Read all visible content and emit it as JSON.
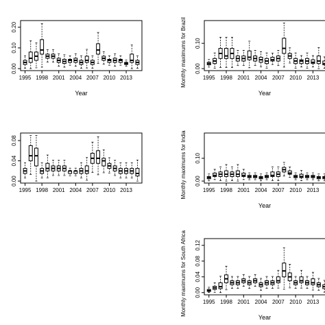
{
  "chart_data": [
    {
      "type": "boxplot",
      "xlabel": "Year",
      "ylabel": "",
      "x_ticks": [
        "1995",
        "1998",
        "2001",
        "2004",
        "2007",
        "2010",
        "2013"
      ],
      "y_ticks": [
        "0.00",
        "0.10",
        "0.20"
      ],
      "ylim": [
        0,
        0.22
      ],
      "series": [
        {
          "name": "",
          "boxes": [
            {
              "year": 1995,
              "q1": 0.02,
              "median": 0.03,
              "q3": 0.04
            },
            {
              "year": 1996,
              "q1": 0.03,
              "median": 0.05,
              "q3": 0.08
            },
            {
              "year": 1997,
              "q1": 0.04,
              "median": 0.06,
              "q3": 0.08
            },
            {
              "year": 1998,
              "q1": 0.07,
              "median": 0.09,
              "q3": 0.14
            },
            {
              "year": 1999,
              "q1": 0.05,
              "median": 0.06,
              "q3": 0.07
            },
            {
              "year": 2000,
              "q1": 0.05,
              "median": 0.06,
              "q3": 0.07
            },
            {
              "year": 2001,
              "q1": 0.03,
              "median": 0.04,
              "q3": 0.05
            },
            {
              "year": 2002,
              "q1": 0.025,
              "median": 0.035,
              "q3": 0.045
            },
            {
              "year": 2003,
              "q1": 0.03,
              "median": 0.04,
              "q3": 0.045
            },
            {
              "year": 2004,
              "q1": 0.03,
              "median": 0.04,
              "q3": 0.05
            },
            {
              "year": 2005,
              "q1": 0.02,
              "median": 0.03,
              "q3": 0.04
            },
            {
              "year": 2006,
              "q1": 0.03,
              "median": 0.04,
              "q3": 0.06
            },
            {
              "year": 2007,
              "q1": 0.02,
              "median": 0.03,
              "q3": 0.04
            },
            {
              "year": 2008,
              "q1": 0.07,
              "median": 0.09,
              "q3": 0.12
            },
            {
              "year": 2009,
              "q1": 0.04,
              "median": 0.05,
              "q3": 0.06
            },
            {
              "year": 2010,
              "q1": 0.03,
              "median": 0.04,
              "q3": 0.045
            },
            {
              "year": 2011,
              "q1": 0.03,
              "median": 0.04,
              "q3": 0.05
            },
            {
              "year": 2012,
              "q1": 0.03,
              "median": 0.04,
              "q3": 0.045
            },
            {
              "year": 2013,
              "q1": 0.02,
              "median": 0.025,
              "q3": 0.03
            },
            {
              "year": 2014,
              "q1": 0.03,
              "median": 0.04,
              "q3": 0.07
            },
            {
              "year": 2015,
              "q1": 0.02,
              "median": 0.03,
              "q3": 0.04
            }
          ]
        }
      ]
    },
    {
      "type": "boxplot",
      "xlabel": "Year",
      "ylabel": "Monthly maximums for Brazil",
      "x_ticks": [
        "1995",
        "1998",
        "2001",
        "2004",
        "2007",
        "2010",
        "2013"
      ],
      "y_ticks": [
        "0.00",
        "0.10"
      ],
      "ylim": [
        0,
        0.18
      ],
      "series": [
        {
          "name": "",
          "boxes": [
            {
              "year": 1995,
              "q1": 0.015,
              "median": 0.02,
              "q3": 0.025
            },
            {
              "year": 1996,
              "q1": 0.02,
              "median": 0.03,
              "q3": 0.04
            },
            {
              "year": 1997,
              "q1": 0.04,
              "median": 0.06,
              "q3": 0.08
            },
            {
              "year": 1998,
              "q1": 0.04,
              "median": 0.05,
              "q3": 0.08
            },
            {
              "year": 1999,
              "q1": 0.04,
              "median": 0.06,
              "q3": 0.08
            },
            {
              "year": 2000,
              "q1": 0.03,
              "median": 0.04,
              "q3": 0.05
            },
            {
              "year": 2001,
              "q1": 0.03,
              "median": 0.04,
              "q3": 0.05
            },
            {
              "year": 2002,
              "q1": 0.035,
              "median": 0.045,
              "q3": 0.07
            },
            {
              "year": 2003,
              "q1": 0.03,
              "median": 0.04,
              "q3": 0.05
            },
            {
              "year": 2004,
              "q1": 0.025,
              "median": 0.035,
              "q3": 0.045
            },
            {
              "year": 2005,
              "q1": 0.02,
              "median": 0.03,
              "q3": 0.04
            },
            {
              "year": 2006,
              "q1": 0.03,
              "median": 0.035,
              "q3": 0.045
            },
            {
              "year": 2007,
              "q1": 0.03,
              "median": 0.04,
              "q3": 0.05
            },
            {
              "year": 2008,
              "q1": 0.06,
              "median": 0.08,
              "q3": 0.12
            },
            {
              "year": 2009,
              "q1": 0.04,
              "median": 0.05,
              "q3": 0.06
            },
            {
              "year": 2010,
              "q1": 0.02,
              "median": 0.03,
              "q3": 0.04
            },
            {
              "year": 2011,
              "q1": 0.02,
              "median": 0.03,
              "q3": 0.035
            },
            {
              "year": 2012,
              "q1": 0.02,
              "median": 0.03,
              "q3": 0.04
            },
            {
              "year": 2013,
              "q1": 0.02,
              "median": 0.025,
              "q3": 0.035
            },
            {
              "year": 2014,
              "q1": 0.02,
              "median": 0.03,
              "q3": 0.05
            },
            {
              "year": 2015,
              "q1": 0.015,
              "median": 0.02,
              "q3": 0.03
            }
          ]
        }
      ]
    },
    {
      "type": "boxplot",
      "xlabel": "",
      "ylabel": "",
      "x_ticks": [
        "1995",
        "1998",
        "2001",
        "2004",
        "2007",
        "2010",
        "2013"
      ],
      "y_ticks": [
        "0.00",
        "0.04",
        "0.08"
      ],
      "ylim": [
        0,
        0.09
      ],
      "series": [
        {
          "name": "",
          "boxes": [
            {
              "year": 1995,
              "q1": 0.015,
              "median": 0.02,
              "q3": 0.025
            },
            {
              "year": 1996,
              "q1": 0.04,
              "median": 0.05,
              "q3": 0.07
            },
            {
              "year": 1997,
              "q1": 0.03,
              "median": 0.05,
              "q3": 0.065
            },
            {
              "year": 1998,
              "q1": 0.015,
              "median": 0.02,
              "q3": 0.025
            },
            {
              "year": 1999,
              "q1": 0.02,
              "median": 0.025,
              "q3": 0.035
            },
            {
              "year": 2000,
              "q1": 0.02,
              "median": 0.025,
              "q3": 0.03
            },
            {
              "year": 2001,
              "q1": 0.02,
              "median": 0.025,
              "q3": 0.03
            },
            {
              "year": 2002,
              "q1": 0.02,
              "median": 0.025,
              "q3": 0.03
            },
            {
              "year": 2003,
              "q1": 0.015,
              "median": 0.02,
              "q3": 0.02
            },
            {
              "year": 2004,
              "q1": 0.015,
              "median": 0.02,
              "q3": 0.02
            },
            {
              "year": 2005,
              "q1": 0.015,
              "median": 0.02,
              "q3": 0.025
            },
            {
              "year": 2006,
              "q1": 0.015,
              "median": 0.02,
              "q3": 0.03
            },
            {
              "year": 2007,
              "q1": 0.035,
              "median": 0.045,
              "q3": 0.055
            },
            {
              "year": 2008,
              "q1": 0.035,
              "median": 0.045,
              "q3": 0.06
            },
            {
              "year": 2009,
              "q1": 0.03,
              "median": 0.04,
              "q3": 0.045
            },
            {
              "year": 2010,
              "q1": 0.025,
              "median": 0.03,
              "q3": 0.035
            },
            {
              "year": 2011,
              "q1": 0.02,
              "median": 0.025,
              "q3": 0.03
            },
            {
              "year": 2012,
              "q1": 0.015,
              "median": 0.02,
              "q3": 0.025
            },
            {
              "year": 2013,
              "q1": 0.015,
              "median": 0.02,
              "q3": 0.025
            },
            {
              "year": 2014,
              "q1": 0.015,
              "median": 0.02,
              "q3": 0.025
            },
            {
              "year": 2015,
              "q1": 0.01,
              "median": 0.015,
              "q3": 0.025
            }
          ]
        }
      ]
    },
    {
      "type": "boxplot",
      "xlabel": "Year",
      "ylabel": "Monthly maximums for India",
      "x_ticks": [
        "1995",
        "1998",
        "2001",
        "2004",
        "2007",
        "2010",
        "2013"
      ],
      "y_ticks": [
        "0.00",
        "0.10"
      ],
      "ylim": [
        0,
        0.2
      ],
      "series": [
        {
          "name": "",
          "boxes": [
            {
              "year": 1995,
              "q1": 0.01,
              "median": 0.015,
              "q3": 0.02
            },
            {
              "year": 1996,
              "q1": 0.02,
              "median": 0.025,
              "q3": 0.035
            },
            {
              "year": 1997,
              "q1": 0.02,
              "median": 0.03,
              "q3": 0.04
            },
            {
              "year": 1998,
              "q1": 0.02,
              "median": 0.03,
              "q3": 0.045
            },
            {
              "year": 1999,
              "q1": 0.02,
              "median": 0.03,
              "q3": 0.04
            },
            {
              "year": 2000,
              "q1": 0.02,
              "median": 0.03,
              "q3": 0.045
            },
            {
              "year": 2001,
              "q1": 0.02,
              "median": 0.025,
              "q3": 0.035
            },
            {
              "year": 2002,
              "q1": 0.015,
              "median": 0.02,
              "q3": 0.025
            },
            {
              "year": 2003,
              "q1": 0.015,
              "median": 0.02,
              "q3": 0.025
            },
            {
              "year": 2004,
              "q1": 0.01,
              "median": 0.015,
              "q3": 0.02
            },
            {
              "year": 2005,
              "q1": 0.015,
              "median": 0.02,
              "q3": 0.025
            },
            {
              "year": 2006,
              "q1": 0.02,
              "median": 0.025,
              "q3": 0.04
            },
            {
              "year": 2007,
              "q1": 0.02,
              "median": 0.03,
              "q3": 0.04
            },
            {
              "year": 2008,
              "q1": 0.04,
              "median": 0.05,
              "q3": 0.06
            },
            {
              "year": 2009,
              "q1": 0.03,
              "median": 0.035,
              "q3": 0.045
            },
            {
              "year": 2010,
              "q1": 0.015,
              "median": 0.02,
              "q3": 0.025
            },
            {
              "year": 2011,
              "q1": 0.015,
              "median": 0.02,
              "q3": 0.03
            },
            {
              "year": 2012,
              "q1": 0.015,
              "median": 0.02,
              "q3": 0.025
            },
            {
              "year": 2013,
              "q1": 0.015,
              "median": 0.02,
              "q3": 0.025
            },
            {
              "year": 2014,
              "q1": 0.01,
              "median": 0.015,
              "q3": 0.02
            },
            {
              "year": 2015,
              "q1": 0.01,
              "median": 0.015,
              "q3": 0.02
            }
          ]
        }
      ]
    },
    {
      "type": "boxplot",
      "xlabel": "Year",
      "ylabel": "Monthly maximums for South Africa",
      "x_ticks": [
        "1995",
        "1998",
        "2001",
        "2004",
        "2007",
        "2010",
        "2013"
      ],
      "y_ticks": [
        "0.00",
        "0.04",
        "0.08",
        "0.12"
      ],
      "ylim": [
        0,
        0.13
      ],
      "series": [
        {
          "name": "",
          "boxes": [
            {
              "year": 1995,
              "q1": 0.003,
              "median": 0.005,
              "q3": 0.008
            },
            {
              "year": 1996,
              "q1": 0.008,
              "median": 0.012,
              "q3": 0.016
            },
            {
              "year": 1997,
              "q1": 0.01,
              "median": 0.015,
              "q3": 0.025
            },
            {
              "year": 1998,
              "q1": 0.025,
              "median": 0.035,
              "q3": 0.045
            },
            {
              "year": 1999,
              "q1": 0.02,
              "median": 0.025,
              "q3": 0.03
            },
            {
              "year": 2000,
              "q1": 0.02,
              "median": 0.025,
              "q3": 0.03
            },
            {
              "year": 2001,
              "q1": 0.025,
              "median": 0.03,
              "q3": 0.035
            },
            {
              "year": 2002,
              "q1": 0.02,
              "median": 0.025,
              "q3": 0.03
            },
            {
              "year": 2003,
              "q1": 0.025,
              "median": 0.03,
              "q3": 0.035
            },
            {
              "year": 2004,
              "q1": 0.015,
              "median": 0.02,
              "q3": 0.025
            },
            {
              "year": 2005,
              "q1": 0.02,
              "median": 0.025,
              "q3": 0.03
            },
            {
              "year": 2006,
              "q1": 0.02,
              "median": 0.025,
              "q3": 0.03
            },
            {
              "year": 2007,
              "q1": 0.025,
              "median": 0.03,
              "q3": 0.04
            },
            {
              "year": 2008,
              "q1": 0.04,
              "median": 0.055,
              "q3": 0.075
            },
            {
              "year": 2009,
              "q1": 0.03,
              "median": 0.04,
              "q3": 0.05
            },
            {
              "year": 2010,
              "q1": 0.02,
              "median": 0.025,
              "q3": 0.03
            },
            {
              "year": 2011,
              "q1": 0.025,
              "median": 0.03,
              "q3": 0.04
            },
            {
              "year": 2012,
              "q1": 0.02,
              "median": 0.025,
              "q3": 0.03
            },
            {
              "year": 2013,
              "q1": 0.02,
              "median": 0.025,
              "q3": 0.035
            },
            {
              "year": 2014,
              "q1": 0.015,
              "median": 0.02,
              "q3": 0.025
            },
            {
              "year": 2015,
              "q1": 0.01,
              "median": 0.015,
              "q3": 0.02
            }
          ]
        }
      ]
    }
  ]
}
